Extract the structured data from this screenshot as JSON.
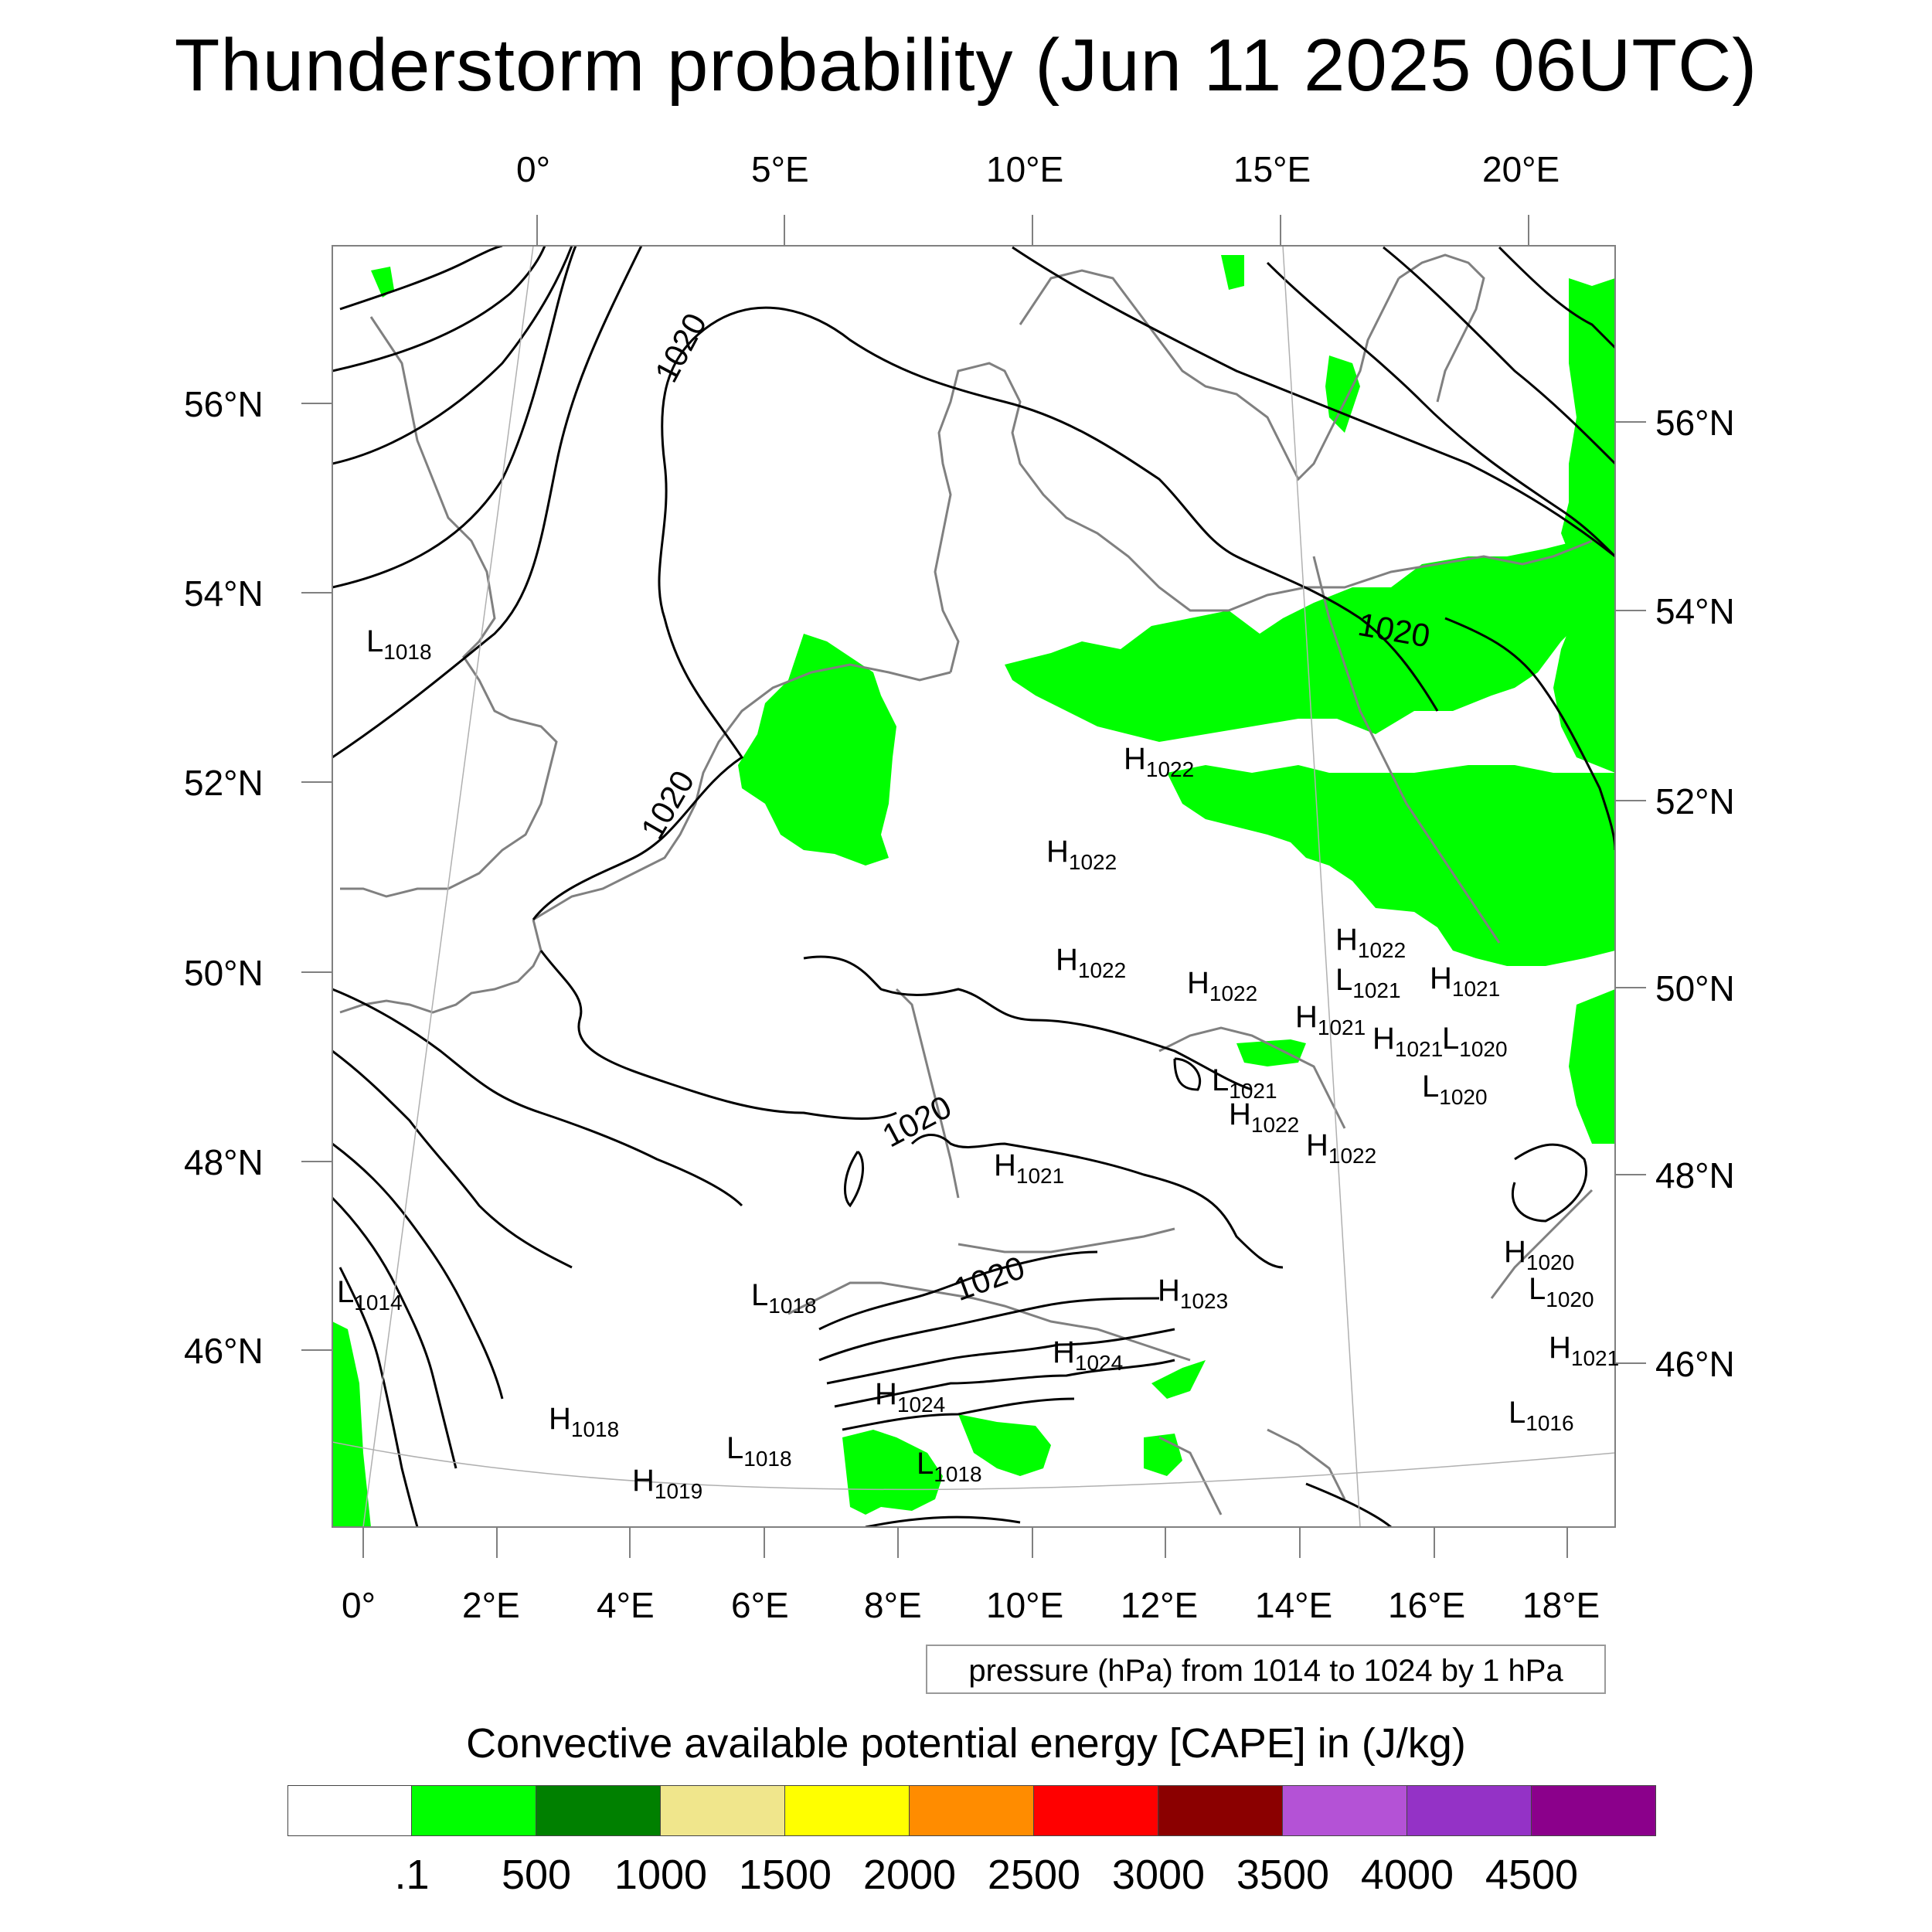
{
  "title": "Thunderstorm probability (Jun 11 2025 06UTC)",
  "top_lon_labels": [
    "0°",
    "5°E",
    "10°E",
    "15°E",
    "20°E"
  ],
  "bottom_lon_labels": [
    "0°",
    "2°E",
    "4°E",
    "6°E",
    "8°E",
    "10°E",
    "12°E",
    "14°E",
    "16°E",
    "18°E"
  ],
  "left_lat_labels": [
    "56°N",
    "54°N",
    "52°N",
    "50°N",
    "48°N",
    "46°N"
  ],
  "right_lat_labels": [
    "56°N",
    "54°N",
    "52°N",
    "50°N",
    "48°N",
    "46°N"
  ],
  "isobar_labels": [
    "1020",
    "1020",
    "1020",
    "1020",
    "1020"
  ],
  "pressure_centers": [
    {
      "type": "L",
      "value": "1018"
    },
    {
      "type": "H",
      "value": "1022"
    },
    {
      "type": "H",
      "value": "1022"
    },
    {
      "type": "H",
      "value": "1022"
    },
    {
      "type": "H",
      "value": "1022"
    },
    {
      "type": "H",
      "value": "1022"
    },
    {
      "type": "L",
      "value": "1021"
    },
    {
      "type": "H",
      "value": "1021"
    },
    {
      "type": "H",
      "value": "1021"
    },
    {
      "type": "H",
      "value": "1021"
    },
    {
      "type": "L",
      "value": "1020"
    },
    {
      "type": "L",
      "value": "1021"
    },
    {
      "type": "H",
      "value": "1022"
    },
    {
      "type": "H",
      "value": "1022"
    },
    {
      "type": "L",
      "value": "1020"
    },
    {
      "type": "H",
      "value": "1021"
    },
    {
      "type": "L",
      "value": "1014"
    },
    {
      "type": "L",
      "value": "1018"
    },
    {
      "type": "H",
      "value": "1023"
    },
    {
      "type": "H",
      "value": "1024"
    },
    {
      "type": "H",
      "value": "1024"
    },
    {
      "type": "H",
      "value": "1018"
    },
    {
      "type": "L",
      "value": "1018"
    },
    {
      "type": "L",
      "value": "1018"
    },
    {
      "type": "H",
      "value": "1019"
    },
    {
      "type": "H",
      "value": "1020"
    },
    {
      "type": "L",
      "value": "1020"
    },
    {
      "type": "H",
      "value": "1021"
    },
    {
      "type": "L",
      "value": "1016"
    }
  ],
  "contour_info": "pressure (hPa) from 1014 to 1024 by 1 hPa",
  "legend": {
    "title": "Convective available potential energy [CAPE] in (J/kg)",
    "colors": [
      "#ffffff",
      "#00ff00",
      "#008000",
      "#f0e68c",
      "#ffff00",
      "#ff8c00",
      "#ff0000",
      "#8b0000",
      "#b452d6",
      "#9432c6",
      "#8b008b"
    ],
    "tick_labels": [
      ".1",
      "500",
      "1000",
      "1500",
      "2000",
      "2500",
      "3000",
      "3500",
      "4000",
      "4500"
    ]
  }
}
